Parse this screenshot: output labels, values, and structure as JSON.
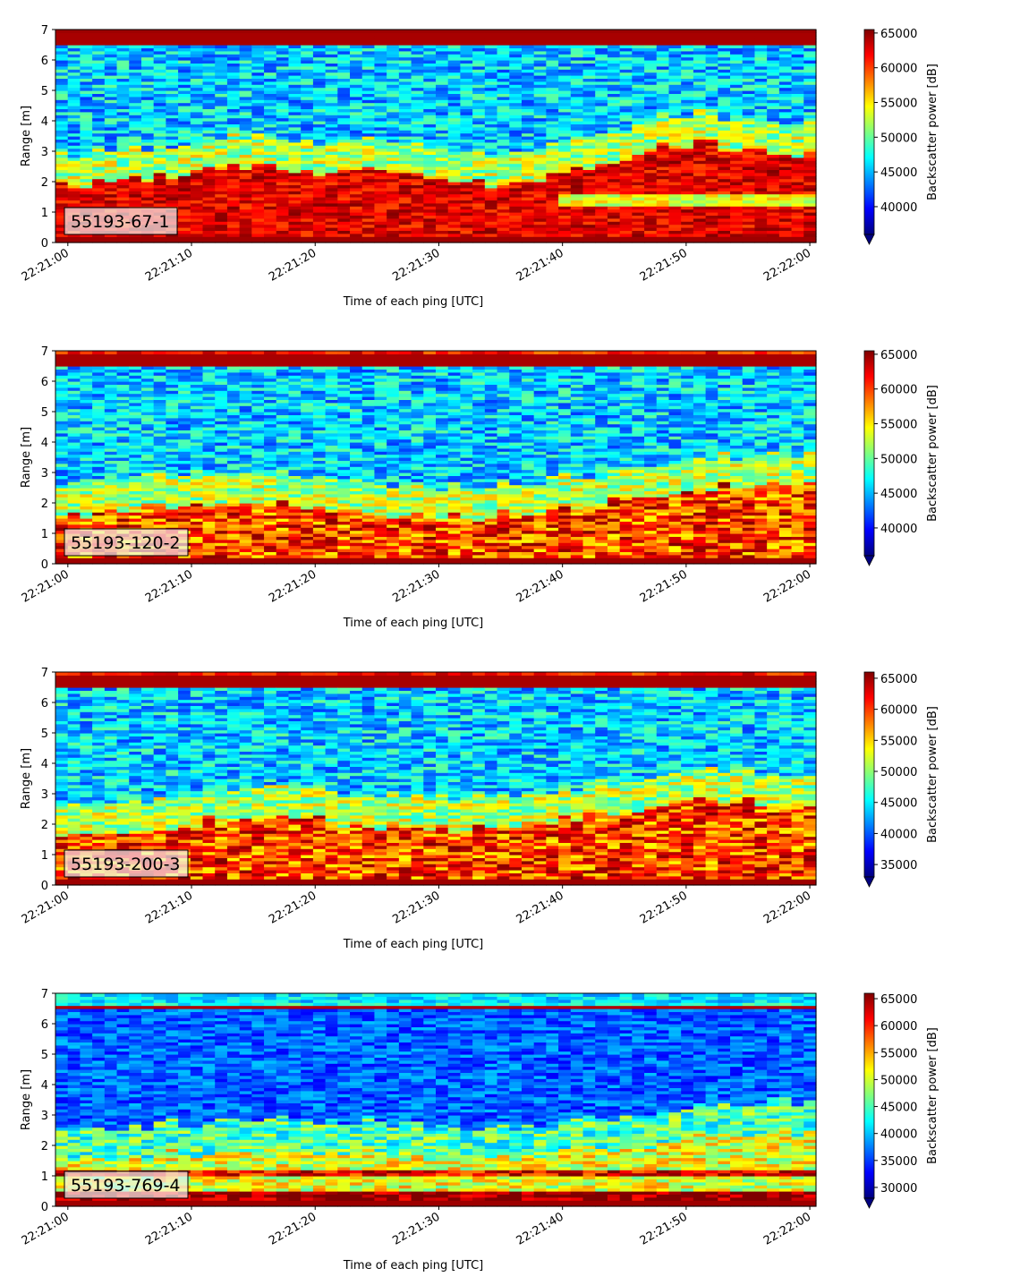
{
  "chart_data": [
    {
      "type": "heatmap",
      "label": "55193-67-1",
      "xlabel": "Time of each ping [UTC]",
      "ylabel": "Range [m]",
      "x_ticks": [
        "22:21:00",
        "22:21:10",
        "22:21:20",
        "22:21:30",
        "22:21:40",
        "22:21:50",
        "22:22:00"
      ],
      "y_ticks": [
        "0",
        "1",
        "2",
        "3",
        "4",
        "5",
        "6",
        "7"
      ],
      "xlim": [
        "22:20:59",
        "22:22:00.5"
      ],
      "ylim": [
        0,
        7
      ],
      "colorbar_label": "Backscatter power [dB]",
      "colorbar_ticks": [
        "40000",
        "45000",
        "50000",
        "55000",
        "60000",
        "65000"
      ],
      "clim": [
        36000,
        65500
      ],
      "bottom_band_top_m": [
        1.9,
        2.0,
        2.2,
        2.4,
        2.5,
        2.3,
        2.4,
        2.3,
        2.0,
        1.9,
        2.3,
        2.6,
        3.1,
        3.3,
        3.0,
        2.9
      ]
    },
    {
      "type": "heatmap",
      "label": "55193-120-2",
      "xlabel": "Time of each ping [UTC]",
      "ylabel": "Range [m]",
      "x_ticks": [
        "22:21:00",
        "22:21:10",
        "22:21:20",
        "22:21:30",
        "22:21:40",
        "22:21:50",
        "22:22:00"
      ],
      "y_ticks": [
        "0",
        "1",
        "2",
        "3",
        "4",
        "5",
        "6",
        "7"
      ],
      "xlim": [
        "22:20:59",
        "22:22:00.5"
      ],
      "ylim": [
        0,
        7
      ],
      "colorbar_label": "Backscatter power [dB]",
      "colorbar_ticks": [
        "40000",
        "45000",
        "50000",
        "55000",
        "60000",
        "65000"
      ],
      "clim": [
        36000,
        65500
      ],
      "bottom_band_top_m": [
        1.6,
        1.7,
        1.9,
        2.0,
        2.0,
        1.8,
        1.7,
        1.6,
        1.5,
        1.6,
        1.8,
        2.0,
        2.3,
        2.5,
        2.6,
        2.6
      ]
    },
    {
      "type": "heatmap",
      "label": "55193-200-3",
      "xlabel": "Time of each ping [UTC]",
      "ylabel": "Range [m]",
      "x_ticks": [
        "22:21:00",
        "22:21:10",
        "22:21:20",
        "22:21:30",
        "22:21:40",
        "22:21:50",
        "22:22:00"
      ],
      "y_ticks": [
        "0",
        "1",
        "2",
        "3",
        "4",
        "5",
        "6",
        "7"
      ],
      "xlim": [
        "22:20:59",
        "22:22:00.5"
      ],
      "ylim": [
        0,
        7
      ],
      "colorbar_label": "Backscatter power [dB]",
      "colorbar_ticks": [
        "35000",
        "40000",
        "45000",
        "50000",
        "55000",
        "60000",
        "65000"
      ],
      "clim": [
        33000,
        66000
      ],
      "bottom_band_top_m": [
        1.6,
        1.7,
        1.9,
        2.1,
        2.2,
        2.1,
        2.0,
        1.9,
        1.9,
        2.0,
        2.2,
        2.4,
        2.6,
        2.8,
        2.7,
        2.6
      ]
    },
    {
      "type": "heatmap",
      "label": "55193-769-4",
      "xlabel": "Time of each ping [UTC]",
      "ylabel": "Range [m]",
      "x_ticks": [
        "22:21:00",
        "22:21:10",
        "22:21:20",
        "22:21:30",
        "22:21:40",
        "22:21:50",
        "22:22:00"
      ],
      "y_ticks": [
        "0",
        "1",
        "2",
        "3",
        "4",
        "5",
        "6",
        "7"
      ],
      "xlim": [
        "22:20:59",
        "22:22:00.5"
      ],
      "ylim": [
        0,
        7
      ],
      "colorbar_label": "Backscatter power [dB]",
      "colorbar_ticks": [
        "30000",
        "35000",
        "40000",
        "45000",
        "50000",
        "55000",
        "60000",
        "65000"
      ],
      "clim": [
        28000,
        66000
      ],
      "bottom_band_top_m": [
        1.4,
        1.5,
        1.7,
        1.8,
        1.9,
        1.9,
        1.8,
        1.7,
        1.6,
        1.6,
        1.8,
        1.9,
        2.1,
        2.3,
        2.4,
        2.4
      ]
    }
  ],
  "colors": {
    "colormap": [
      "#00007f",
      "#0000ff",
      "#007fff",
      "#00ffff",
      "#7fff7f",
      "#ffff00",
      "#ff7f00",
      "#ff0000",
      "#7f0000"
    ],
    "label_box_fill": "#f2f2f2"
  }
}
